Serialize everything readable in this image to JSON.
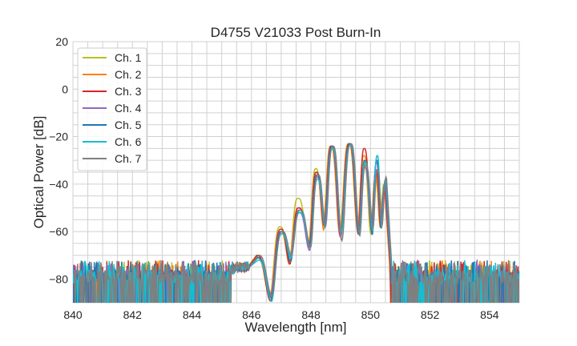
{
  "chart_data": {
    "type": "line",
    "title": "D4755 V21033 Post Burn-In",
    "xlabel": "Wavelength [nm]",
    "ylabel": "Optical Power [dB]",
    "xlim": [
      840,
      855
    ],
    "ylim": [
      -90,
      20
    ],
    "xticks": [
      840,
      842,
      844,
      846,
      848,
      850,
      852,
      854
    ],
    "yticks": [
      20,
      0,
      -20,
      -40,
      -60,
      -80
    ],
    "grid": true,
    "legend_placement": "top-left",
    "noise_floor_range": [
      -90,
      -72
    ],
    "lobe_wavelengths": [
      846.2,
      847.0,
      847.6,
      848.2,
      848.7,
      849.3,
      849.8,
      850.2,
      850.5
    ],
    "null_wavelengths": [
      846.65,
      847.3,
      847.95,
      848.45,
      849.0,
      849.6,
      850.05,
      850.35
    ],
    "null_values": [
      -88,
      -72,
      -66,
      -58,
      -62,
      -60,
      -60,
      -58
    ],
    "series": [
      {
        "name": "Ch. 1",
        "color": "#bcbd22",
        "lobe_peaks": [
          -70,
          -58,
          -46,
          -33.5,
          -24,
          -23,
          -30,
          -38,
          -40
        ]
      },
      {
        "name": "Ch. 2",
        "color": "#ff7f0e",
        "lobe_peaks": [
          -71,
          -60,
          -50,
          -35,
          -24,
          -23,
          -28,
          -36,
          -42
        ]
      },
      {
        "name": "Ch. 3",
        "color": "#d62728",
        "lobe_peaks": [
          -70,
          -59,
          -50,
          -35,
          -24,
          -23,
          -25,
          -34,
          -42
        ]
      },
      {
        "name": "Ch. 4",
        "color": "#9467bd",
        "lobe_peaks": [
          -71,
          -60,
          -52,
          -37,
          -24.5,
          -23.5,
          -33,
          -31,
          -40
        ]
      },
      {
        "name": "Ch. 5",
        "color": "#1f77b4",
        "lobe_peaks": [
          -71,
          -60,
          -51,
          -36,
          -24,
          -23,
          -30,
          -30,
          -38
        ]
      },
      {
        "name": "Ch. 6",
        "color": "#17becf",
        "lobe_peaks": [
          -72,
          -61,
          -52,
          -38,
          -25,
          -23.5,
          -31,
          -28,
          -38
        ]
      },
      {
        "name": "Ch. 7",
        "color": "#7f7f7f",
        "lobe_peaks": [
          -70,
          -60,
          -51,
          -36,
          -24,
          -23,
          -32,
          -34,
          -37
        ]
      }
    ]
  }
}
